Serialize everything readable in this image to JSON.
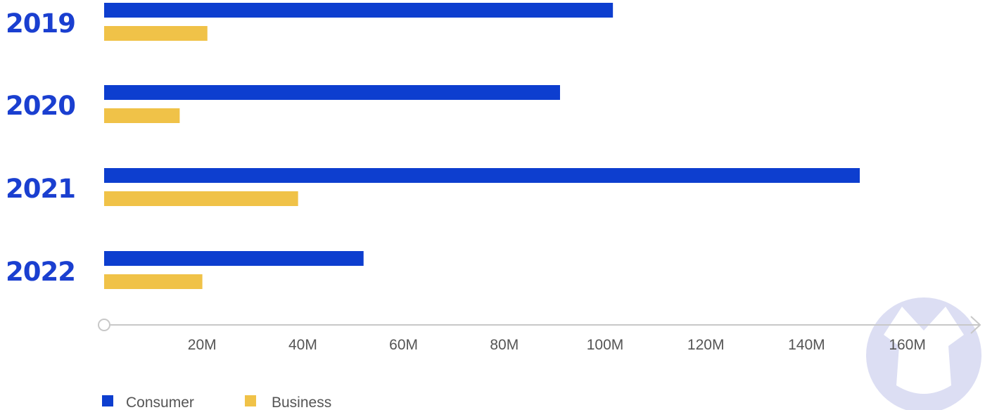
{
  "colors": {
    "consumer": "#0D3ECF",
    "business": "#F0C248",
    "axis": "#C8C8C8",
    "year_label": "#1A3FD0",
    "watermark": "#DCDEF3"
  },
  "watermark_icon": "malwarebytes-logo",
  "chart_data": {
    "type": "bar",
    "orientation": "horizontal",
    "categories": [
      "2019",
      "2020",
      "2021",
      "2022"
    ],
    "series": [
      {
        "name": "Consumer",
        "values": [
          101,
          90.5,
          150,
          51.5
        ]
      },
      {
        "name": "Business",
        "values": [
          20.5,
          15,
          38.5,
          19.5
        ]
      }
    ],
    "x_ticks": [
      20,
      40,
      60,
      80,
      100,
      120,
      140,
      160
    ],
    "x_tick_labels": [
      "20M",
      "40M",
      "60M",
      "80M",
      "100M",
      "120M",
      "140M",
      "160M"
    ],
    "xlim": [
      0,
      175
    ],
    "title": "",
    "xlabel": "",
    "ylabel": "",
    "grid": false,
    "legend_position": "bottom-left"
  }
}
